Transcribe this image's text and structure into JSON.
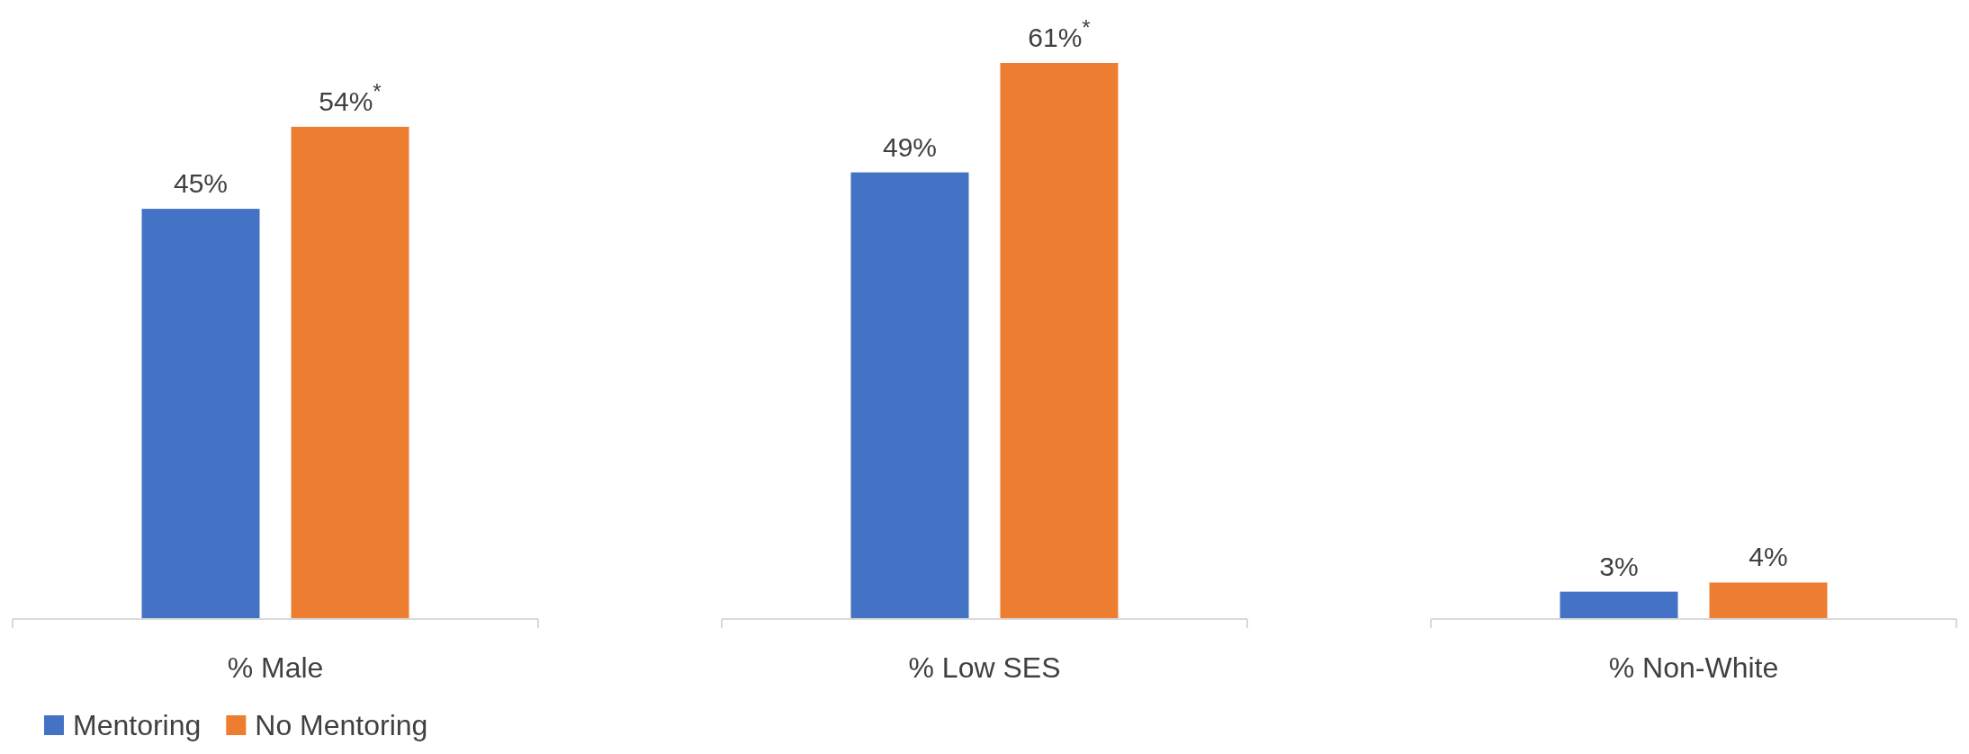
{
  "chart_data": {
    "type": "bar",
    "categories": [
      "% Male",
      "% Low SES",
      "% Non-White"
    ],
    "series": [
      {
        "name": "Mentoring",
        "color": "#4472c4",
        "values": [
          45,
          49,
          3
        ],
        "value_labels": [
          "45%",
          "49%",
          "3%"
        ]
      },
      {
        "name": "No Mentoring",
        "color": "#ed7d31",
        "values": [
          54,
          61,
          4
        ],
        "value_labels": [
          "54%$^{*}$",
          "61%$^{*}$",
          "4%"
        ]
      }
    ],
    "legend": "bottom left"
  }
}
